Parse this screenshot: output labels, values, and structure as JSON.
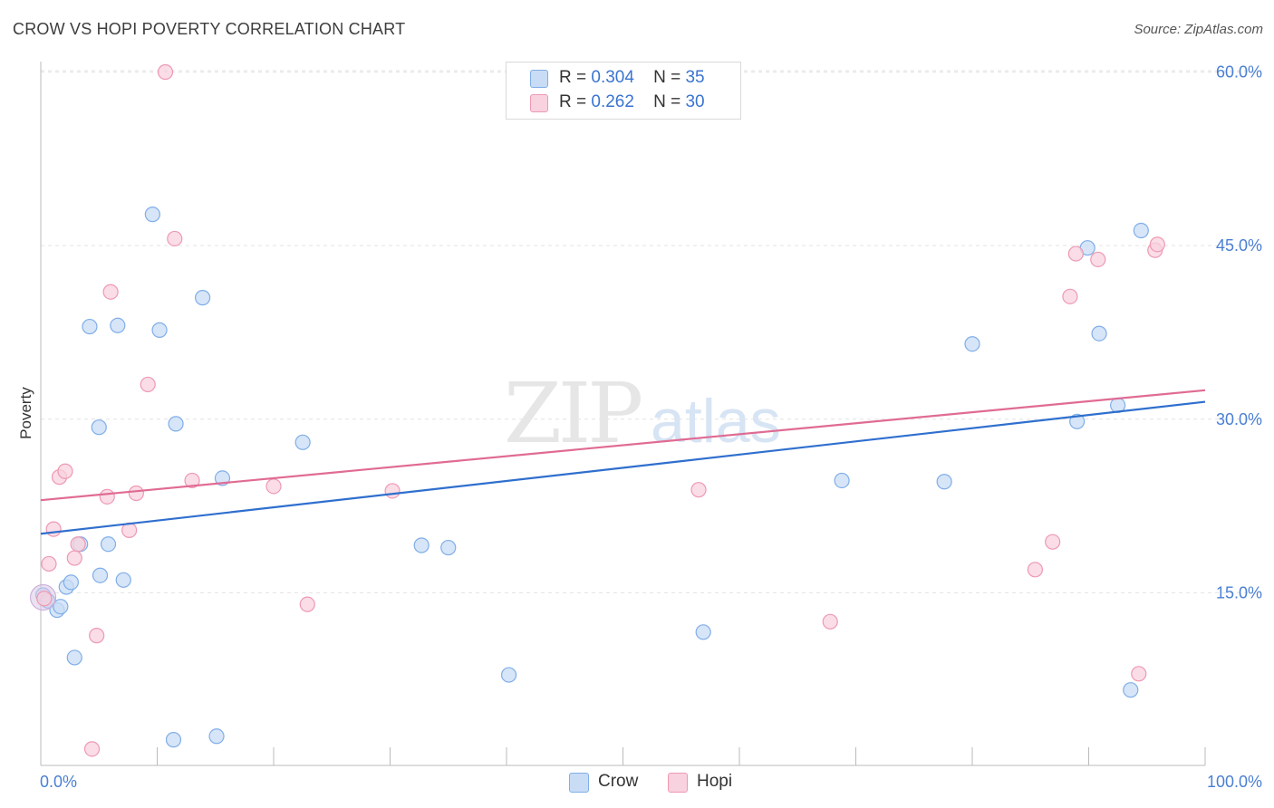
{
  "title": "CROW VS HOPI POVERTY CORRELATION CHART",
  "source": "Source: ZipAtlas.com",
  "watermark": {
    "zip": "ZIP",
    "atlas": "atlas"
  },
  "legend": {
    "rows": [
      {
        "r_label": "R =",
        "r_value": "0.304",
        "n_label": "N =",
        "n_value": "35"
      },
      {
        "r_label": "R =",
        "r_value": "0.262",
        "n_label": "N =",
        "n_value": "30"
      }
    ]
  },
  "chart_data": {
    "type": "scatter",
    "title": "CROW VS HOPI POVERTY CORRELATION CHART",
    "xlabel": "",
    "ylabel": "Poverty",
    "xlim": [
      0,
      100
    ],
    "ylim": [
      0,
      61
    ],
    "x_tick_labels": [
      "0.0%",
      "100.0%"
    ],
    "y_ticks": [
      15,
      30,
      45,
      60
    ],
    "y_tick_labels": [
      "15.0%",
      "30.0%",
      "45.0%",
      "60.0%"
    ],
    "grid": true,
    "colors": {
      "crow": "#7faee8",
      "crow_fill": "#c9dcf5",
      "crow_line": "#2f6fce",
      "hopi": "#ee99b2",
      "hopi_fill": "#f8d2de",
      "hopi_line": "#e06b93"
    },
    "series": [
      {
        "name": "Crow",
        "R": 0.304,
        "N": 35,
        "trend": {
          "x": [
            0,
            100
          ],
          "y": [
            20.1,
            31.5
          ]
        },
        "points": [
          [
            0.2,
            14.8
          ],
          [
            0.6,
            14.3
          ],
          [
            1.4,
            13.5
          ],
          [
            1.7,
            13.8
          ],
          [
            2.2,
            15.5
          ],
          [
            2.6,
            15.9
          ],
          [
            2.9,
            9.4
          ],
          [
            3.4,
            19.2
          ],
          [
            4.2,
            38.0
          ],
          [
            5.0,
            29.3
          ],
          [
            5.1,
            16.5
          ],
          [
            5.8,
            19.2
          ],
          [
            6.6,
            38.1
          ],
          [
            7.1,
            16.1
          ],
          [
            9.6,
            47.7
          ],
          [
            10.2,
            37.7
          ],
          [
            11.4,
            2.3
          ],
          [
            11.6,
            29.6
          ],
          [
            13.9,
            40.5
          ],
          [
            15.1,
            2.6
          ],
          [
            15.6,
            24.9
          ],
          [
            22.5,
            28.0
          ],
          [
            32.7,
            19.1
          ],
          [
            35.0,
            18.9
          ],
          [
            40.2,
            7.9
          ],
          [
            56.9,
            11.6
          ],
          [
            68.8,
            24.7
          ],
          [
            77.6,
            24.6
          ],
          [
            80.0,
            36.5
          ],
          [
            89.0,
            29.8
          ],
          [
            89.9,
            44.8
          ],
          [
            90.9,
            37.4
          ],
          [
            92.5,
            31.2
          ],
          [
            94.5,
            46.3
          ],
          [
            93.6,
            6.6
          ]
        ]
      },
      {
        "name": "Hopi",
        "R": 0.262,
        "N": 30,
        "trend": {
          "x": [
            0,
            100
          ],
          "y": [
            23.0,
            32.5
          ]
        },
        "points": [
          [
            0.3,
            14.5
          ],
          [
            0.7,
            17.5
          ],
          [
            1.1,
            20.5
          ],
          [
            1.6,
            25.0
          ],
          [
            2.1,
            25.5
          ],
          [
            2.9,
            18.0
          ],
          [
            3.2,
            19.2
          ],
          [
            4.4,
            1.5
          ],
          [
            4.8,
            11.3
          ],
          [
            5.7,
            23.3
          ],
          [
            6.0,
            41.0
          ],
          [
            7.6,
            20.4
          ],
          [
            8.2,
            23.6
          ],
          [
            9.2,
            33.0
          ],
          [
            10.7,
            60.0
          ],
          [
            11.5,
            45.6
          ],
          [
            13.0,
            24.7
          ],
          [
            20.0,
            24.2
          ],
          [
            22.9,
            14.0
          ],
          [
            30.2,
            23.8
          ],
          [
            56.5,
            23.9
          ],
          [
            67.8,
            12.5
          ],
          [
            85.4,
            17.0
          ],
          [
            86.9,
            19.4
          ],
          [
            88.4,
            40.6
          ],
          [
            88.9,
            44.3
          ],
          [
            90.8,
            43.8
          ],
          [
            94.3,
            8.0
          ],
          [
            95.7,
            44.6
          ],
          [
            95.9,
            45.1
          ]
        ]
      }
    ]
  },
  "bottom_legend": [
    {
      "label": "Crow"
    },
    {
      "label": "Hopi"
    }
  ]
}
